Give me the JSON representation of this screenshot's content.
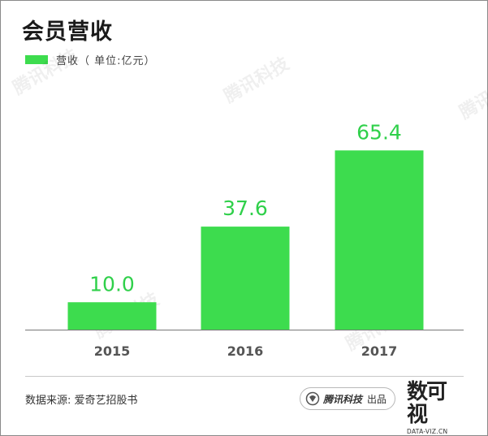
{
  "title": "会员营收",
  "legend": {
    "label": "营收（ 单位:亿元）",
    "color": "#3ddc4e"
  },
  "watermark": "腾讯科技",
  "chart_data": {
    "type": "bar",
    "categories": [
      "2015",
      "2016",
      "2017"
    ],
    "values": [
      10.0,
      37.6,
      65.4
    ],
    "value_labels": [
      "10.0",
      "37.6",
      "65.4"
    ],
    "title": "会员营收",
    "xlabel": "",
    "ylabel": "",
    "ylim": [
      0,
      80
    ],
    "grid": false,
    "legend_position": "top-left",
    "bar_color": "#3ddc4e",
    "label_color": "#2fd04a"
  },
  "footer": {
    "source": "数据来源: 爱奇艺招股书",
    "brand_name": "腾讯科技",
    "brand_suffix": "出品",
    "logo_text": "数可视",
    "logo_url_text": "DATA-VIZ.CN"
  }
}
